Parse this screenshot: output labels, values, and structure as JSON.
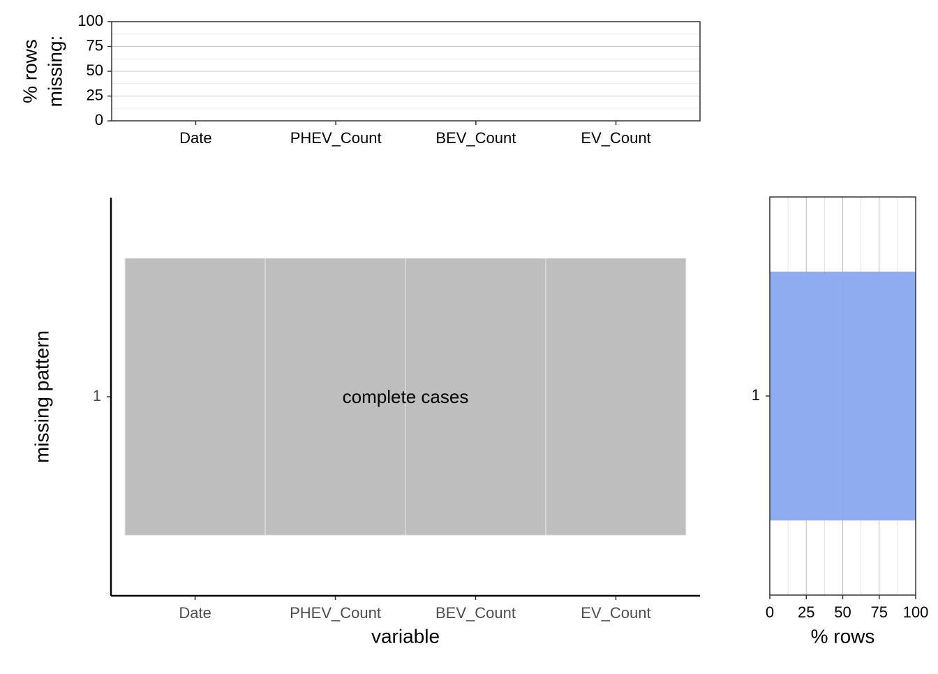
{
  "chart_data": [
    {
      "type": "bar",
      "ylabel_lines": [
        "% rows",
        "missing:"
      ],
      "categories": [
        "Date",
        "PHEV_Count",
        "BEV_Count",
        "EV_Count"
      ],
      "values": [
        0,
        0,
        0,
        0
      ],
      "color": "#8aa8ef",
      "ylim": [
        0,
        100
      ],
      "yticks": [
        0,
        25,
        50,
        75,
        100
      ],
      "ygrid_minor": [
        12.5,
        37.5,
        62.5,
        87.5
      ],
      "grid": true
    },
    {
      "type": "tile",
      "xlabel": "variable",
      "ylabel": "missing pattern",
      "annotation": "complete cases",
      "categories": [
        "Date",
        "PHEV_Count",
        "BEV_Count",
        "EV_Count"
      ],
      "y_categories": [
        "1"
      ],
      "values": [
        [
          0,
          0,
          0,
          0
        ]
      ],
      "color": "#bebebe"
    },
    {
      "type": "hbar",
      "xlabel": "% rows",
      "categories": [
        "1"
      ],
      "values": [
        100
      ],
      "color": "#8aa8ef",
      "xlim": [
        0,
        100
      ],
      "xticks": [
        0,
        25,
        50,
        75,
        100
      ],
      "xgrid_minor": [
        12.5,
        37.5,
        62.5,
        87.5
      ],
      "grid": true
    }
  ]
}
